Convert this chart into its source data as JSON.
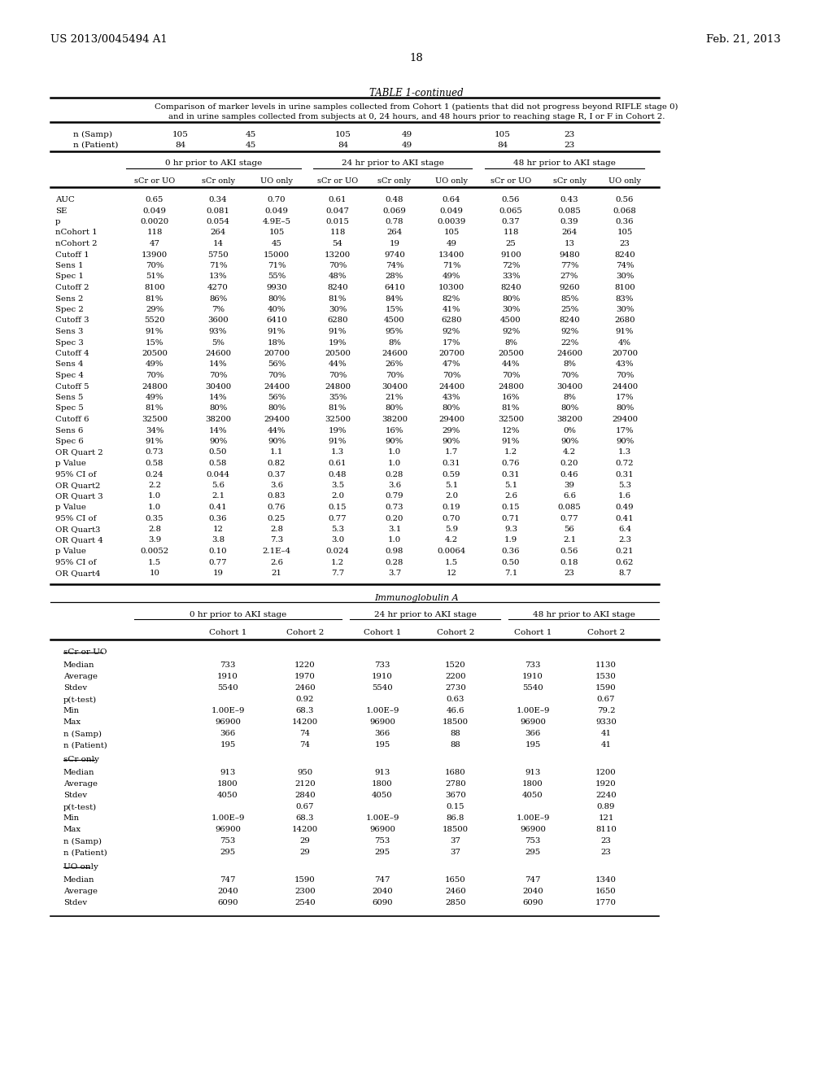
{
  "header_left": "US 2013/0045494 A1",
  "header_right": "Feb. 21, 2013",
  "page_number": "18",
  "table_title": "TABLE 1-continued",
  "description_line1": "Comparison of marker levels in urine samples collected from Cohort 1 (patients that did not progress beyond RIFLE stage 0)",
  "description_line2": "and in urine samples collected from subjects at 0, 24 hours, and 48 hours prior to reaching stage R, I or F in Cohort 2.",
  "n_samp_row": [
    "n (Samp)",
    "105",
    "45",
    "105",
    "49",
    "105",
    "23"
  ],
  "n_patient_row": [
    "n (Patient)",
    "84",
    "45",
    "84",
    "49",
    "84",
    "23"
  ],
  "stage_headers": [
    "0 hr prior to AKI stage",
    "24 hr prior to AKI stage",
    "48 hr prior to AKI stage"
  ],
  "sub_headers": [
    "sCr or UO",
    "sCr only",
    "UO only",
    "sCr or UO",
    "sCr only",
    "UO only",
    "sCr or UO",
    "sCr only",
    "UO only"
  ],
  "rows": [
    [
      "AUC",
      "0.65",
      "0.34",
      "0.70",
      "0.61",
      "0.48",
      "0.64",
      "0.56",
      "0.43",
      "0.56"
    ],
    [
      "SE",
      "0.049",
      "0.081",
      "0.049",
      "0.047",
      "0.069",
      "0.049",
      "0.065",
      "0.085",
      "0.068"
    ],
    [
      "p",
      "0.0020",
      "0.054",
      "4.9E–5",
      "0.015",
      "0.78",
      "0.0039",
      "0.37",
      "0.39",
      "0.36"
    ],
    [
      "nCohort 1",
      "118",
      "264",
      "105",
      "118",
      "264",
      "105",
      "118",
      "264",
      "105"
    ],
    [
      "nCohort 2",
      "47",
      "14",
      "45",
      "54",
      "19",
      "49",
      "25",
      "13",
      "23"
    ],
    [
      "Cutoff 1",
      "13900",
      "5750",
      "15000",
      "13200",
      "9740",
      "13400",
      "9100",
      "9480",
      "8240"
    ],
    [
      "Sens 1",
      "70%",
      "71%",
      "71%",
      "70%",
      "74%",
      "71%",
      "72%",
      "77%",
      "74%"
    ],
    [
      "Spec 1",
      "51%",
      "13%",
      "55%",
      "48%",
      "28%",
      "49%",
      "33%",
      "27%",
      "30%"
    ],
    [
      "Cutoff 2",
      "8100",
      "4270",
      "9930",
      "8240",
      "6410",
      "10300",
      "8240",
      "9260",
      "8100"
    ],
    [
      "Sens 2",
      "81%",
      "86%",
      "80%",
      "81%",
      "84%",
      "82%",
      "80%",
      "85%",
      "83%"
    ],
    [
      "Spec 2",
      "29%",
      "7%",
      "40%",
      "30%",
      "15%",
      "41%",
      "30%",
      "25%",
      "30%"
    ],
    [
      "Cutoff 3",
      "5520",
      "3600",
      "6410",
      "6280",
      "4500",
      "6280",
      "4500",
      "8240",
      "2680"
    ],
    [
      "Sens 3",
      "91%",
      "93%",
      "91%",
      "91%",
      "95%",
      "92%",
      "92%",
      "92%",
      "91%"
    ],
    [
      "Spec 3",
      "15%",
      "5%",
      "18%",
      "19%",
      "8%",
      "17%",
      "8%",
      "22%",
      "4%"
    ],
    [
      "Cutoff 4",
      "20500",
      "24600",
      "20700",
      "20500",
      "24600",
      "20700",
      "20500",
      "24600",
      "20700"
    ],
    [
      "Sens 4",
      "49%",
      "14%",
      "56%",
      "44%",
      "26%",
      "47%",
      "44%",
      "8%",
      "43%"
    ],
    [
      "Spec 4",
      "70%",
      "70%",
      "70%",
      "70%",
      "70%",
      "70%",
      "70%",
      "70%",
      "70%"
    ],
    [
      "Cutoff 5",
      "24800",
      "30400",
      "24400",
      "24800",
      "30400",
      "24400",
      "24800",
      "30400",
      "24400"
    ],
    [
      "Sens 5",
      "49%",
      "14%",
      "56%",
      "35%",
      "21%",
      "43%",
      "16%",
      "8%",
      "17%"
    ],
    [
      "Spec 5",
      "81%",
      "80%",
      "80%",
      "81%",
      "80%",
      "80%",
      "81%",
      "80%",
      "80%"
    ],
    [
      "Cutoff 6",
      "32500",
      "38200",
      "29400",
      "32500",
      "38200",
      "29400",
      "32500",
      "38200",
      "29400"
    ],
    [
      "Sens 6",
      "34%",
      "14%",
      "44%",
      "19%",
      "16%",
      "29%",
      "12%",
      "0%",
      "17%"
    ],
    [
      "Spec 6",
      "91%",
      "90%",
      "90%",
      "91%",
      "90%",
      "90%",
      "91%",
      "90%",
      "90%"
    ],
    [
      "OR Quart 2",
      "0.73",
      "0.50",
      "1.1",
      "1.3",
      "1.0",
      "1.7",
      "1.2",
      "4.2",
      "1.3"
    ],
    [
      "p Value",
      "0.58",
      "0.58",
      "0.82",
      "0.61",
      "1.0",
      "0.31",
      "0.76",
      "0.20",
      "0.72"
    ],
    [
      "95% CI of",
      "0.24",
      "0.044",
      "0.37",
      "0.48",
      "0.28",
      "0.59",
      "0.31",
      "0.46",
      "0.31"
    ],
    [
      "OR Quart2",
      "2.2",
      "5.6",
      "3.6",
      "3.5",
      "3.6",
      "5.1",
      "5.1",
      "39",
      "5.3"
    ],
    [
      "OR Quart 3",
      "1.0",
      "2.1",
      "0.83",
      "2.0",
      "0.79",
      "2.0",
      "2.6",
      "6.6",
      "1.6"
    ],
    [
      "p Value",
      "1.0",
      "0.41",
      "0.76",
      "0.15",
      "0.73",
      "0.19",
      "0.15",
      "0.085",
      "0.49"
    ],
    [
      "95% CI of",
      "0.35",
      "0.36",
      "0.25",
      "0.77",
      "0.20",
      "0.70",
      "0.71",
      "0.77",
      "0.41"
    ],
    [
      "OR Quart3",
      "2.8",
      "12",
      "2.8",
      "5.3",
      "3.1",
      "5.9",
      "9.3",
      "56",
      "6.4"
    ],
    [
      "OR Quart 4",
      "3.9",
      "3.8",
      "7.3",
      "3.0",
      "1.0",
      "4.2",
      "1.9",
      "2.1",
      "2.3"
    ],
    [
      "p Value",
      "0.0052",
      "0.10",
      "2.1E–4",
      "0.024",
      "0.98",
      "0.0064",
      "0.36",
      "0.56",
      "0.21"
    ],
    [
      "95% CI of",
      "1.5",
      "0.77",
      "2.6",
      "1.2",
      "0.28",
      "1.5",
      "0.50",
      "0.18",
      "0.62"
    ],
    [
      "OR Quart4",
      "10",
      "19",
      "21",
      "7.7",
      "3.7",
      "12",
      "7.1",
      "23",
      "8.7"
    ]
  ],
  "immuno_title": "Immunoglobulin A",
  "immuno_stage_headers": [
    "0 hr prior to AKI stage",
    "24 hr prior to AKI stage",
    "48 hr prior to AKI stage"
  ],
  "immuno_col_headers": [
    "Cohort 1",
    "Cohort 2",
    "Cohort 1",
    "Cohort 2",
    "Cohort 1",
    "Cohort 2"
  ],
  "immuno_section1_label": "sCr or UO",
  "immuno_section1_rows": [
    [
      "Median",
      "733",
      "1220",
      "733",
      "1520",
      "733",
      "1130"
    ],
    [
      "Average",
      "1910",
      "1970",
      "1910",
      "2200",
      "1910",
      "1530"
    ],
    [
      "Stdev",
      "5540",
      "2460",
      "5540",
      "2730",
      "5540",
      "1590"
    ],
    [
      "p(t-test)",
      "",
      "0.92",
      "",
      "0.63",
      "",
      "0.67"
    ],
    [
      "Min",
      "1.00E–9",
      "68.3",
      "1.00E–9",
      "46.6",
      "1.00E–9",
      "79.2"
    ],
    [
      "Max",
      "96900",
      "14200",
      "96900",
      "18500",
      "96900",
      "9330"
    ],
    [
      "n (Samp)",
      "366",
      "74",
      "366",
      "88",
      "366",
      "41"
    ],
    [
      "n (Patient)",
      "195",
      "74",
      "195",
      "88",
      "195",
      "41"
    ]
  ],
  "immuno_section2_label": "sCr only",
  "immuno_section2_rows": [
    [
      "Median",
      "913",
      "950",
      "913",
      "1680",
      "913",
      "1200"
    ],
    [
      "Average",
      "1800",
      "2120",
      "1800",
      "2780",
      "1800",
      "1920"
    ],
    [
      "Stdev",
      "4050",
      "2840",
      "4050",
      "3670",
      "4050",
      "2240"
    ],
    [
      "p(t-test)",
      "",
      "0.67",
      "",
      "0.15",
      "",
      "0.89"
    ],
    [
      "Min",
      "1.00E–9",
      "68.3",
      "1.00E–9",
      "86.8",
      "1.00E–9",
      "121"
    ],
    [
      "Max",
      "96900",
      "14200",
      "96900",
      "18500",
      "96900",
      "8110"
    ],
    [
      "n (Samp)",
      "753",
      "29",
      "753",
      "37",
      "753",
      "23"
    ],
    [
      "n (Patient)",
      "295",
      "29",
      "295",
      "37",
      "295",
      "23"
    ]
  ],
  "immuno_section3_label": "UO only",
  "immuno_section3_rows": [
    [
      "Median",
      "747",
      "1590",
      "747",
      "1650",
      "747",
      "1340"
    ],
    [
      "Average",
      "2040",
      "2300",
      "2040",
      "2460",
      "2040",
      "1650"
    ],
    [
      "Stdev",
      "6090",
      "2540",
      "6090",
      "2850",
      "6090",
      "1770"
    ]
  ],
  "bg_color": "#f0f0f0",
  "text_color": "#333333",
  "line_color": "#555555",
  "font_size_header": 9.0,
  "font_size_table": 7.5,
  "font_size_small": 7.0
}
